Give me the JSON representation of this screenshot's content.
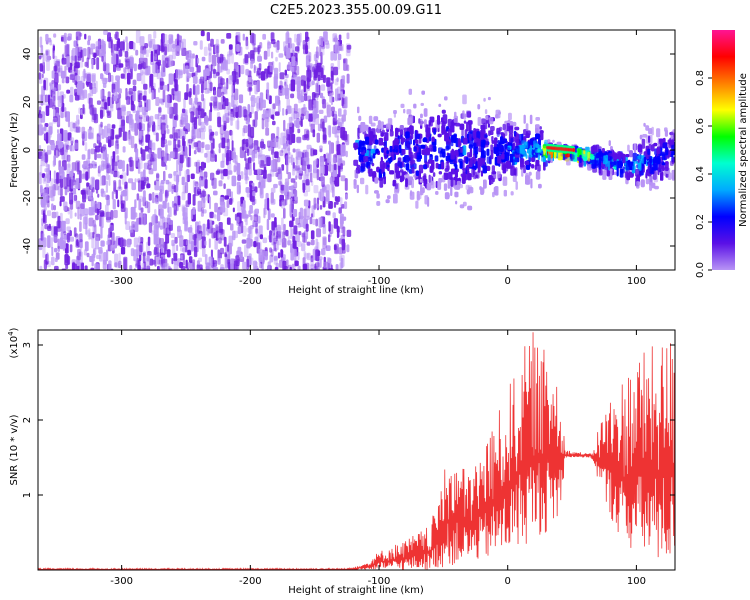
{
  "figure": {
    "title": "C2E5.2023.355.00.09.G11"
  },
  "colors": {
    "snr_line": "#ee3333",
    "spectrogram_base": "#6f1fe0",
    "colorbar_stops": [
      "#b894f5",
      "#5a10e6",
      "#0000ff",
      "#00aaff",
      "#00ffd0",
      "#00ff00",
      "#ffff00",
      "#ff7f00",
      "#ff0000",
      "#ff1493"
    ]
  },
  "chart_data": [
    {
      "type": "heatmap",
      "title": "",
      "xlabel": "Height of straight line (km)",
      "ylabel": "Frequency (Hz)",
      "xlim": [
        -365,
        130
      ],
      "ylim": [
        -50,
        50
      ],
      "xticks": [
        -300,
        -200,
        -100,
        0,
        100
      ],
      "yticks": [
        -40,
        -20,
        0,
        20,
        40
      ],
      "colorbar": {
        "label": "Normalized spectral amplitude",
        "range": [
          0,
          1
        ],
        "ticks": [
          0.0,
          0.2,
          0.4,
          0.6,
          0.8
        ]
      },
      "noise_region": {
        "x_range": [
          -365,
          -125
        ],
        "freq_range": [
          -50,
          50
        ],
        "amplitude_range": [
          0.05,
          0.15
        ]
      },
      "signal_band": [
        {
          "x": -120,
          "center_hz": 1,
          "halfwidth_hz": 12,
          "peak_amplitude": 0.35
        },
        {
          "x": -100,
          "center_hz": -2,
          "halfwidth_hz": 16,
          "peak_amplitude": 0.3
        },
        {
          "x": -60,
          "center_hz": 2,
          "halfwidth_hz": 20,
          "peak_amplitude": 0.3
        },
        {
          "x": -20,
          "center_hz": 1,
          "halfwidth_hz": 18,
          "peak_amplitude": 0.3
        },
        {
          "x": 0,
          "center_hz": 1,
          "halfwidth_hz": 14,
          "peak_amplitude": 0.32
        },
        {
          "x": 25,
          "center_hz": 1,
          "halfwidth_hz": 10,
          "peak_amplitude": 0.45
        },
        {
          "x": 30,
          "center_hz": 1,
          "halfwidth_hz": 3,
          "peak_amplitude": 0.95
        },
        {
          "x": 50,
          "center_hz": 0,
          "halfwidth_hz": 2,
          "peak_amplitude": 0.95
        },
        {
          "x": 70,
          "center_hz": -2,
          "halfwidth_hz": 5,
          "peak_amplitude": 0.4
        },
        {
          "x": 90,
          "center_hz": -5,
          "halfwidth_hz": 6,
          "peak_amplitude": 0.45
        },
        {
          "x": 110,
          "center_hz": -2,
          "halfwidth_hz": 12,
          "peak_amplitude": 0.3
        },
        {
          "x": 130,
          "center_hz": 0,
          "halfwidth_hz": 10,
          "peak_amplitude": 0.3
        }
      ]
    },
    {
      "type": "line",
      "title": "",
      "xlabel": "Height of straight line (km)",
      "ylabel": "SNR (10 * v/v)",
      "y_multiplier": "(x10",
      "y_multiplier_exp": "4",
      "y_multiplier_close": ")",
      "xlim": [
        -365,
        130
      ],
      "ylim": [
        0,
        3.2
      ],
      "xticks": [
        -300,
        -200,
        -100,
        0,
        100
      ],
      "yticks": [
        1,
        2,
        3
      ],
      "series": [
        {
          "values_x_y_max_min": [
            [
              -365,
              0.02,
              0.0
            ],
            [
              -125,
              0.02,
              0.0
            ],
            [
              -110,
              0.1,
              0.0
            ],
            [
              -100,
              0.25,
              0.0
            ],
            [
              -80,
              0.4,
              0.0
            ],
            [
              -60,
              0.6,
              0.0
            ],
            [
              -45,
              1.6,
              0.05
            ],
            [
              -30,
              1.3,
              0.1
            ],
            [
              -10,
              2.0,
              0.15
            ],
            [
              0,
              2.4,
              0.2
            ],
            [
              10,
              2.9,
              0.3
            ],
            [
              20,
              3.2,
              0.4
            ],
            [
              30,
              2.9,
              0.5
            ],
            [
              40,
              2.8,
              0.6
            ],
            [
              45,
              1.6,
              1.5
            ],
            [
              65,
              1.55,
              1.5
            ],
            [
              75,
              2.2,
              0.9
            ],
            [
              90,
              2.6,
              0.3
            ],
            [
              100,
              2.9,
              0.2
            ],
            [
              115,
              3.0,
              0.1
            ],
            [
              130,
              3.2,
              0.05
            ]
          ]
        }
      ]
    }
  ]
}
